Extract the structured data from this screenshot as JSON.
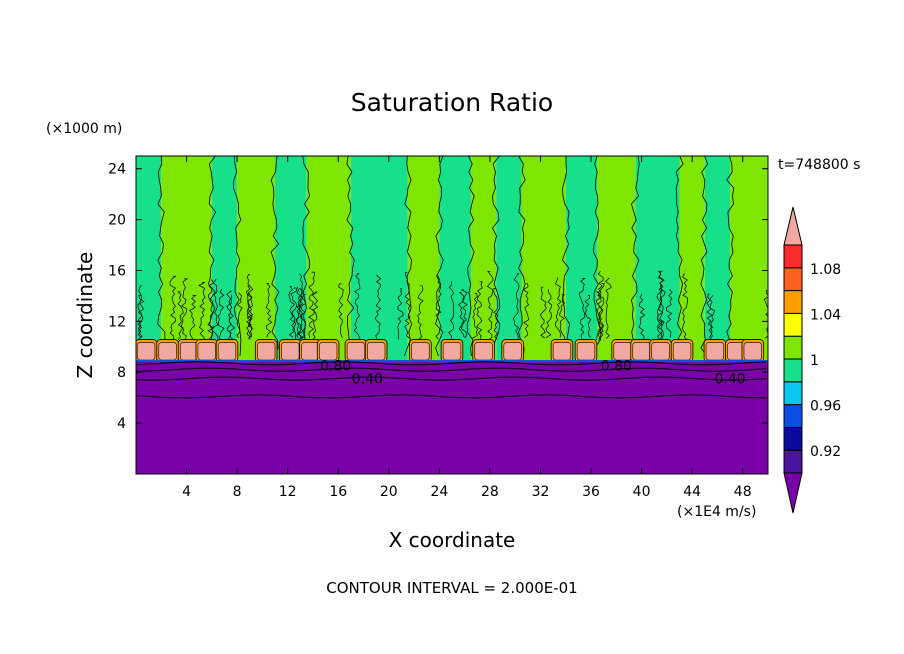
{
  "chart_data": {
    "type": "heatmap",
    "title": "Saturation Ratio",
    "xlabel": "X coordinate",
    "ylabel": "Z coordinate",
    "x_unit": "(×1E4 m/s)",
    "y_unit": "(×1000 m)",
    "time_label": "t=748800 s",
    "footer": "CONTOUR INTERVAL = 2.000E-01",
    "xlim": [
      0,
      50
    ],
    "ylim": [
      0,
      25
    ],
    "x_ticks": [
      4,
      8,
      12,
      16,
      20,
      24,
      28,
      32,
      36,
      40,
      44,
      48
    ],
    "y_ticks": [
      4,
      8,
      12,
      16,
      20,
      24
    ],
    "colorbar": {
      "tick_labels": [
        "0.92",
        "0.96",
        "1",
        "1.04",
        "1.08"
      ],
      "bands": [
        {
          "name": "below-min",
          "color": "#7a00a8"
        },
        {
          "name": "0.90-0.92",
          "color": "#4a14a0"
        },
        {
          "name": "0.92-0.94",
          "color": "#0a0aa0"
        },
        {
          "name": "0.94-0.96",
          "color": "#0a50e6"
        },
        {
          "name": "0.96-0.98",
          "color": "#0ac8f0"
        },
        {
          "name": "0.98-1.00",
          "color": "#16e08a"
        },
        {
          "name": "1.00-1.02",
          "color": "#7ee600"
        },
        {
          "name": "1.02-1.04",
          "color": "#ffff00"
        },
        {
          "name": "1.04-1.06",
          "color": "#ffa000"
        },
        {
          "name": "1.06-1.08",
          "color": "#ff6020"
        },
        {
          "name": "1.08-1.10",
          "color": "#ff2a2a"
        },
        {
          "name": "above-max",
          "color": "#f0a8a0"
        }
      ]
    },
    "regions": {
      "lower_layer": {
        "z_top": 8.8,
        "color": "#7a00a8"
      },
      "column_colors": [
        "#7ee600",
        "#16e08a"
      ],
      "column_boundaries_x": [
        0,
        2,
        6,
        8,
        11,
        13.5,
        17,
        21.5,
        24,
        26.5,
        28.5,
        30.5,
        34,
        36.5,
        39.5,
        43,
        45,
        47,
        50
      ],
      "first_column_color": "#16e08a",
      "cloud_band": {
        "z_range": [
          8.8,
          10.5
        ],
        "color": "#f0a8a0",
        "x_centers": [
          0.8,
          2.5,
          4.2,
          5.6,
          7.2,
          10.3,
          12.2,
          13.8,
          15.2,
          17.4,
          19.0,
          22.5,
          25.0,
          27.5,
          29.8,
          33.7,
          35.6,
          38.5,
          40.0,
          41.5,
          43.2,
          45.8,
          47.5,
          48.8
        ]
      }
    },
    "contour_labels": [
      {
        "text": "0.80",
        "x": 15.8,
        "z": 8.6
      },
      {
        "text": "0.40",
        "x": 18.3,
        "z": 7.6
      },
      {
        "text": "0.80",
        "x": 38.0,
        "z": 8.6
      },
      {
        "text": "0.40",
        "x": 47.0,
        "z": 7.6
      }
    ],
    "contour_lines_z": [
      8.7,
      8.2,
      7.5,
      6.1
    ]
  }
}
